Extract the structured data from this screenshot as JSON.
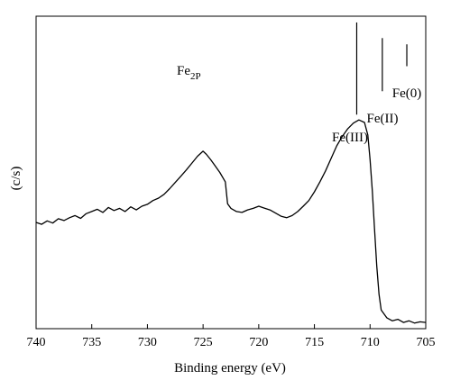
{
  "chart_data": {
    "type": "line",
    "title": "",
    "xlabel": "Binding energy (eV)",
    "ylabel": "(c/s)",
    "xlim": [
      740,
      705
    ],
    "ylim": [
      0,
      1
    ],
    "x_reversed": true,
    "grid": false,
    "x_ticks": [
      740,
      735,
      730,
      725,
      720,
      715,
      710,
      705
    ],
    "series": [
      {
        "name": "",
        "color": "#000000",
        "points": [
          [
            740.0,
            0.34
          ],
          [
            739.5,
            0.334
          ],
          [
            739.0,
            0.345
          ],
          [
            738.5,
            0.338
          ],
          [
            738.0,
            0.352
          ],
          [
            737.5,
            0.346
          ],
          [
            737.0,
            0.355
          ],
          [
            736.5,
            0.362
          ],
          [
            736.0,
            0.353
          ],
          [
            735.5,
            0.368
          ],
          [
            735.0,
            0.375
          ],
          [
            734.5,
            0.382
          ],
          [
            734.0,
            0.372
          ],
          [
            733.5,
            0.388
          ],
          [
            733.0,
            0.378
          ],
          [
            732.5,
            0.385
          ],
          [
            732.0,
            0.375
          ],
          [
            731.5,
            0.39
          ],
          [
            731.0,
            0.38
          ],
          [
            730.5,
            0.392
          ],
          [
            730.0,
            0.398
          ],
          [
            729.5,
            0.41
          ],
          [
            729.0,
            0.418
          ],
          [
            728.5,
            0.43
          ],
          [
            728.0,
            0.448
          ],
          [
            727.5,
            0.468
          ],
          [
            727.0,
            0.488
          ],
          [
            726.5,
            0.508
          ],
          [
            726.0,
            0.53
          ],
          [
            725.5,
            0.552
          ],
          [
            725.0,
            0.568
          ],
          [
            724.7,
            0.558
          ],
          [
            724.3,
            0.54
          ],
          [
            724.0,
            0.525
          ],
          [
            723.5,
            0.5
          ],
          [
            723.0,
            0.47
          ],
          [
            722.8,
            0.4
          ],
          [
            722.5,
            0.385
          ],
          [
            722.0,
            0.375
          ],
          [
            721.5,
            0.372
          ],
          [
            721.0,
            0.38
          ],
          [
            720.5,
            0.385
          ],
          [
            720.0,
            0.392
          ],
          [
            719.5,
            0.386
          ],
          [
            719.0,
            0.38
          ],
          [
            718.5,
            0.37
          ],
          [
            718.0,
            0.36
          ],
          [
            717.5,
            0.355
          ],
          [
            717.0,
            0.362
          ],
          [
            716.5,
            0.375
          ],
          [
            716.0,
            0.392
          ],
          [
            715.5,
            0.41
          ],
          [
            715.0,
            0.438
          ],
          [
            714.5,
            0.47
          ],
          [
            714.0,
            0.505
          ],
          [
            713.5,
            0.545
          ],
          [
            713.0,
            0.585
          ],
          [
            712.5,
            0.615
          ],
          [
            712.0,
            0.64
          ],
          [
            711.5,
            0.658
          ],
          [
            711.0,
            0.668
          ],
          [
            710.5,
            0.66
          ],
          [
            710.2,
            0.62
          ],
          [
            710.0,
            0.54
          ],
          [
            709.8,
            0.44
          ],
          [
            709.6,
            0.32
          ],
          [
            709.4,
            0.2
          ],
          [
            709.2,
            0.11
          ],
          [
            709.0,
            0.06
          ],
          [
            708.5,
            0.035
          ],
          [
            708.0,
            0.025
          ],
          [
            707.5,
            0.03
          ],
          [
            707.0,
            0.02
          ],
          [
            706.5,
            0.025
          ],
          [
            706.0,
            0.018
          ],
          [
            705.5,
            0.022
          ],
          [
            705.0,
            0.02
          ]
        ]
      }
    ],
    "annotations": [
      {
        "id": "fe2p",
        "text": "Fe",
        "subscript": "2P"
      },
      {
        "id": "fe3",
        "text": "Fe(III)",
        "x": 711.2,
        "line_top": 0.98,
        "line_bottom": 0.685
      },
      {
        "id": "fe2",
        "text": "Fe(II)",
        "x": 708.9,
        "line_top": 0.93,
        "line_bottom": 0.76
      },
      {
        "id": "fe0",
        "text": "Fe(0)",
        "x": 706.7,
        "line_top": 0.91,
        "line_bottom": 0.84
      }
    ]
  }
}
